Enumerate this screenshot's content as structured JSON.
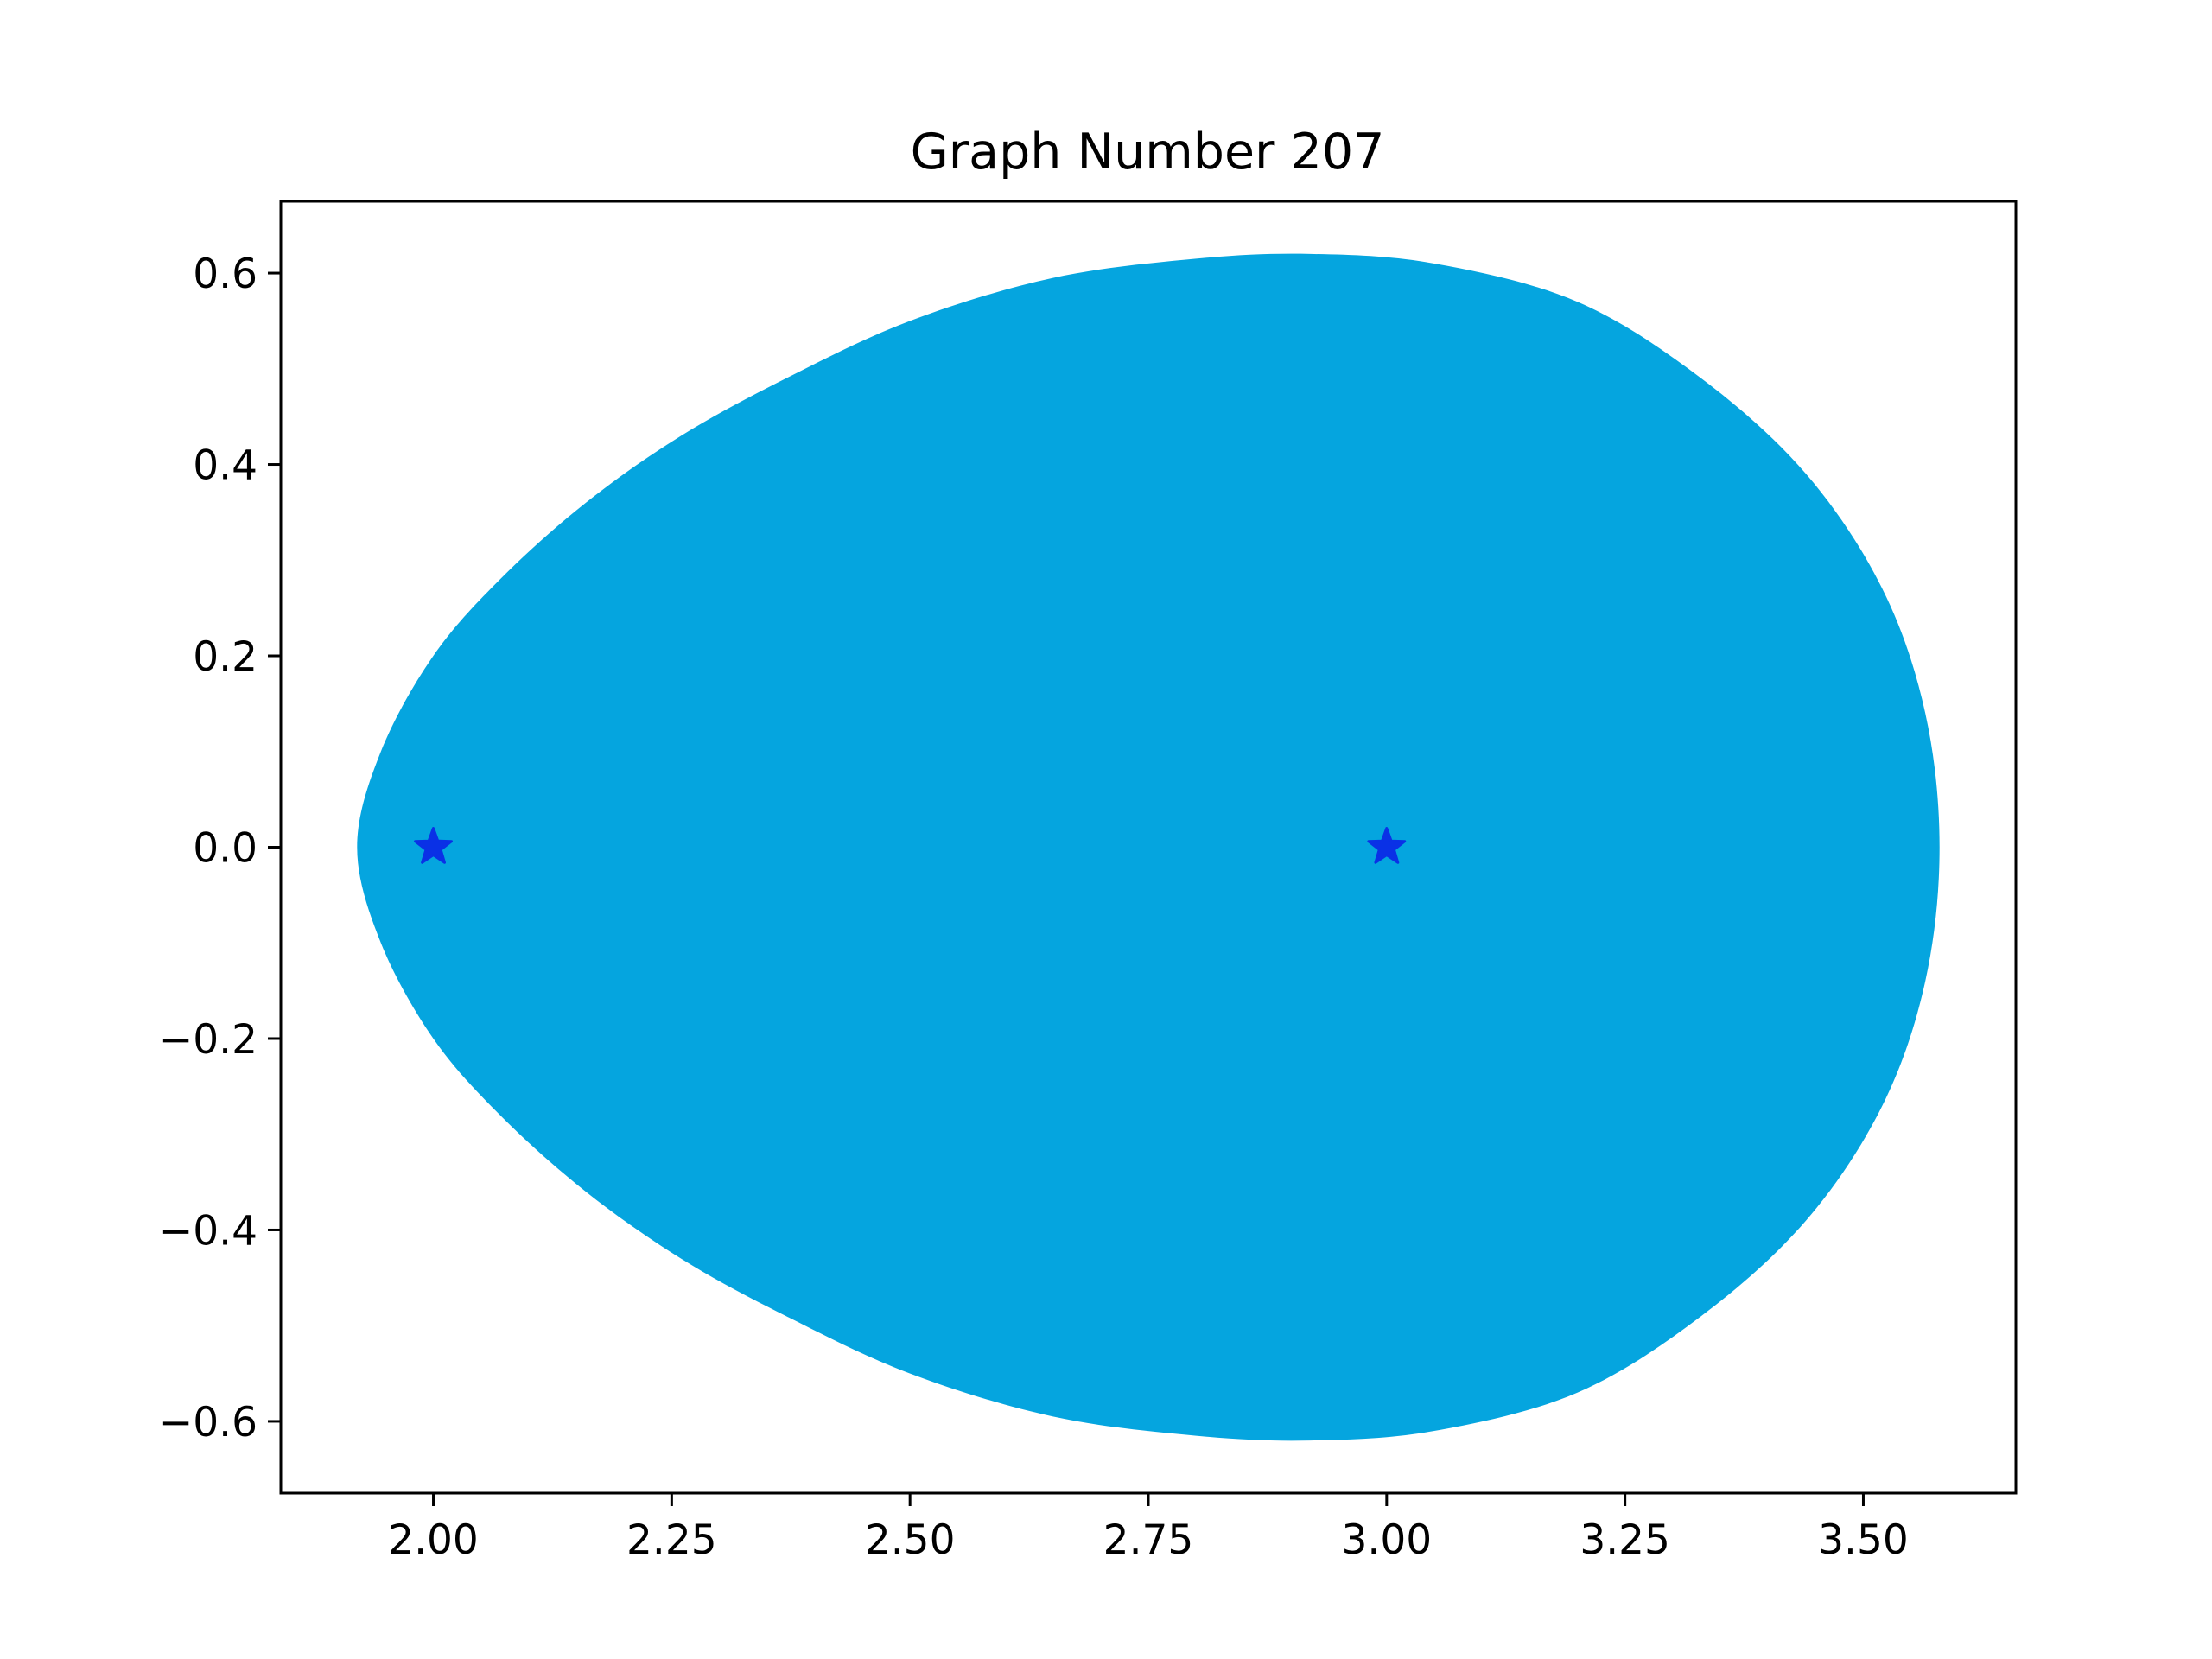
{
  "chart_data": {
    "type": "area",
    "title": "Graph Number 207",
    "xlabel": "",
    "ylabel": "",
    "xlim": [
      1.84,
      3.66
    ],
    "ylim": [
      -0.675,
      0.675
    ],
    "xticks": [
      2.0,
      2.25,
      2.5,
      2.75,
      3.0,
      3.25,
      3.5
    ],
    "xtick_labels": [
      "2.00",
      "2.25",
      "2.50",
      "2.75",
      "3.00",
      "3.25",
      "3.50"
    ],
    "yticks": [
      0.6,
      0.4,
      0.2,
      0.0,
      -0.2,
      -0.4,
      -0.6
    ],
    "ytick_labels": [
      "0.6",
      "0.4",
      "0.2",
      "0.0",
      "−0.2",
      "−0.4",
      "−0.6"
    ],
    "grid": false,
    "region": {
      "name": "",
      "color": "#05a5df",
      "outline": [
        [
          1.92,
          0.0
        ],
        [
          1.945,
          0.1
        ],
        [
          2.0,
          0.2
        ],
        [
          2.07,
          0.28
        ],
        [
          2.16,
          0.36
        ],
        [
          2.26,
          0.43
        ],
        [
          2.37,
          0.49
        ],
        [
          2.5,
          0.55
        ],
        [
          2.65,
          0.595
        ],
        [
          2.8,
          0.615
        ],
        [
          2.92,
          0.62
        ],
        [
          3.05,
          0.61
        ],
        [
          3.2,
          0.57
        ],
        [
          3.33,
          0.49
        ],
        [
          3.44,
          0.39
        ],
        [
          3.52,
          0.27
        ],
        [
          3.565,
          0.14
        ],
        [
          3.58,
          0.0
        ],
        [
          3.565,
          -0.14
        ],
        [
          3.52,
          -0.27
        ],
        [
          3.44,
          -0.39
        ],
        [
          3.33,
          -0.49
        ],
        [
          3.2,
          -0.57
        ],
        [
          3.05,
          -0.61
        ],
        [
          2.92,
          -0.62
        ],
        [
          2.8,
          -0.615
        ],
        [
          2.65,
          -0.595
        ],
        [
          2.5,
          -0.55
        ],
        [
          2.37,
          -0.49
        ],
        [
          2.26,
          -0.43
        ],
        [
          2.16,
          -0.36
        ],
        [
          2.07,
          -0.28
        ],
        [
          2.0,
          -0.2
        ],
        [
          1.945,
          -0.1
        ]
      ]
    },
    "series": [
      {
        "type": "scatter",
        "marker": "star",
        "color": "#0a31e6",
        "x": [
          2.0,
          3.0
        ],
        "y": [
          0.0,
          0.0
        ]
      }
    ]
  }
}
